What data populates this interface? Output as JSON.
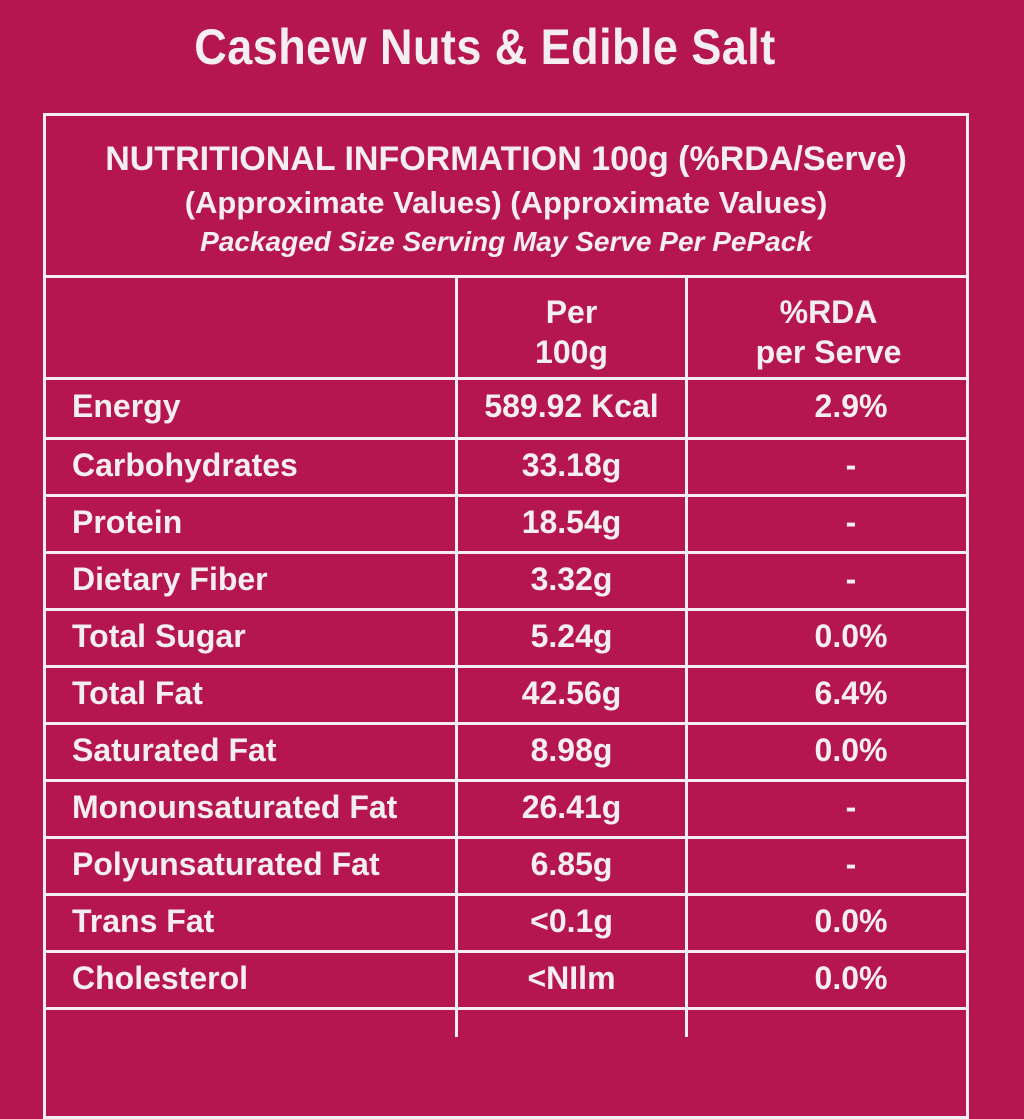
{
  "title": "Cashew Nuts & Edible Salt",
  "header": {
    "line1": "NUTRITIONAL INFORMATION 100g (%RDA/Serve)",
    "line2": "(Approximate Values)  (Approximate Values)",
    "line3": "Packaged Size Serving May Serve Per PePack"
  },
  "table": {
    "columns": [
      "Per\n100g",
      "%RDA\nper Serve"
    ],
    "rows": [
      [
        "Energy",
        "589.92 Kcal",
        "2.9%"
      ],
      [
        "Carbohydrates",
        "33.18g",
        "-"
      ],
      [
        "Protein",
        "18.54g",
        "-"
      ],
      [
        "Dietary Fiber",
        "3.32g",
        "-"
      ],
      [
        "Total Sugar",
        "5.24g",
        "0.0%"
      ],
      [
        "Total Fat",
        "42.56g",
        "6.4%"
      ],
      [
        "Saturated Fat",
        "8.98g",
        "0.0%"
      ],
      [
        "Monounsaturated Fat",
        "26.41g",
        "-"
      ],
      [
        "Polyunsaturated Fat",
        "6.85g",
        "-"
      ],
      [
        "Trans Fat",
        "<0.1g",
        "0.0%"
      ],
      [
        "Cholesterol",
        "<NIlm",
        "0.0%"
      ]
    ]
  }
}
